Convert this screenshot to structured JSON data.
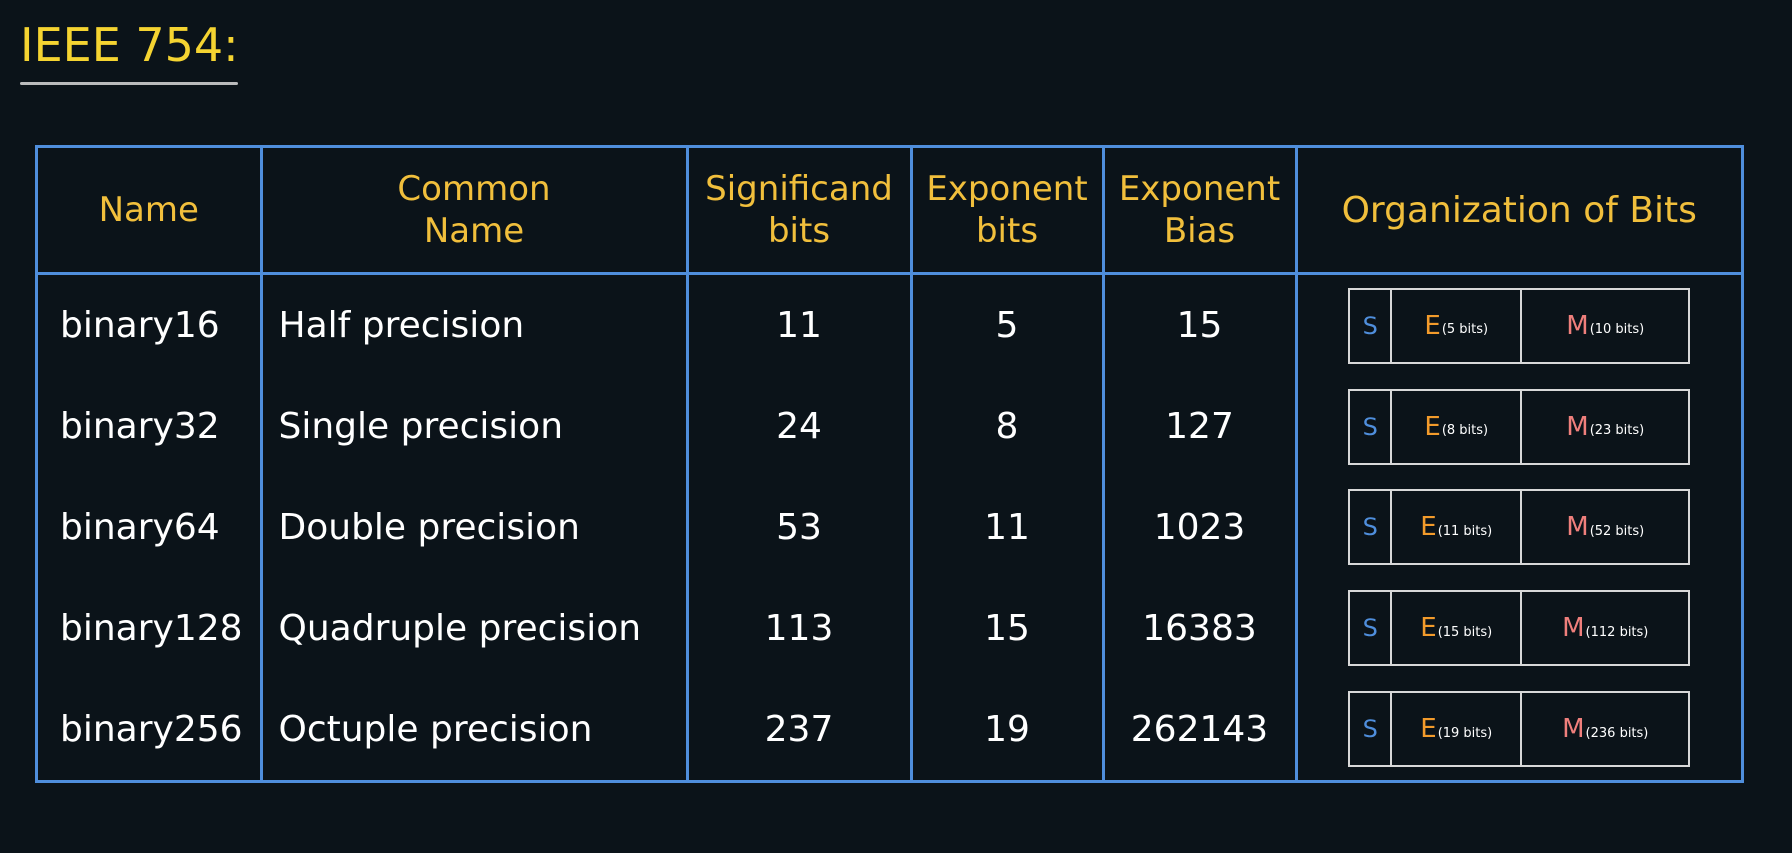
{
  "title": "IEEE 754:",
  "colors": {
    "background": "#0b1319",
    "title": "#f5d431",
    "header_text": "#f1bf3c",
    "grid_border": "#4f8edc",
    "sign": "#4f8edc",
    "exponent": "#f39b2b",
    "mantissa": "#ef7f7c"
  },
  "headers": {
    "name": "Name",
    "common_line1": "Common",
    "common_line2": "Name",
    "significand_line1": "Significand",
    "significand_line2": "bits",
    "exponent_line1": "Exponent",
    "exponent_line2": "bits",
    "bias_line1": "Exponent",
    "bias_line2": "Bias",
    "organization": "Organization of Bits"
  },
  "rows": [
    {
      "name": "binary16",
      "common": "Half precision",
      "significand": "11",
      "exponent": "5",
      "bias": "15",
      "s_label": "S",
      "e_label": "E",
      "e_sub": "(5 bits)",
      "m_label": "M",
      "m_sub": "(10 bits)"
    },
    {
      "name": "binary32",
      "common": "Single precision",
      "significand": "24",
      "exponent": "8",
      "bias": "127",
      "s_label": "S",
      "e_label": "E",
      "e_sub": "(8 bits)",
      "m_label": "M",
      "m_sub": "(23 bits)"
    },
    {
      "name": "binary64",
      "common": "Double precision",
      "significand": "53",
      "exponent": "11",
      "bias": "1023",
      "s_label": "S",
      "e_label": "E",
      "e_sub": "(11 bits)",
      "m_label": "M",
      "m_sub": "(52 bits)"
    },
    {
      "name": "binary128",
      "common": "Quadruple precision",
      "significand": "113",
      "exponent": "15",
      "bias": "16383",
      "s_label": "S",
      "e_label": "E",
      "e_sub": "(15 bits)",
      "m_label": "M",
      "m_sub": "(112 bits)"
    },
    {
      "name": "binary256",
      "common": "Octuple precision",
      "significand": "237",
      "exponent": "19",
      "bias": "262143",
      "s_label": "S",
      "e_label": "E",
      "e_sub": "(19 bits)",
      "m_label": "M",
      "m_sub": "(236 bits)"
    }
  ]
}
